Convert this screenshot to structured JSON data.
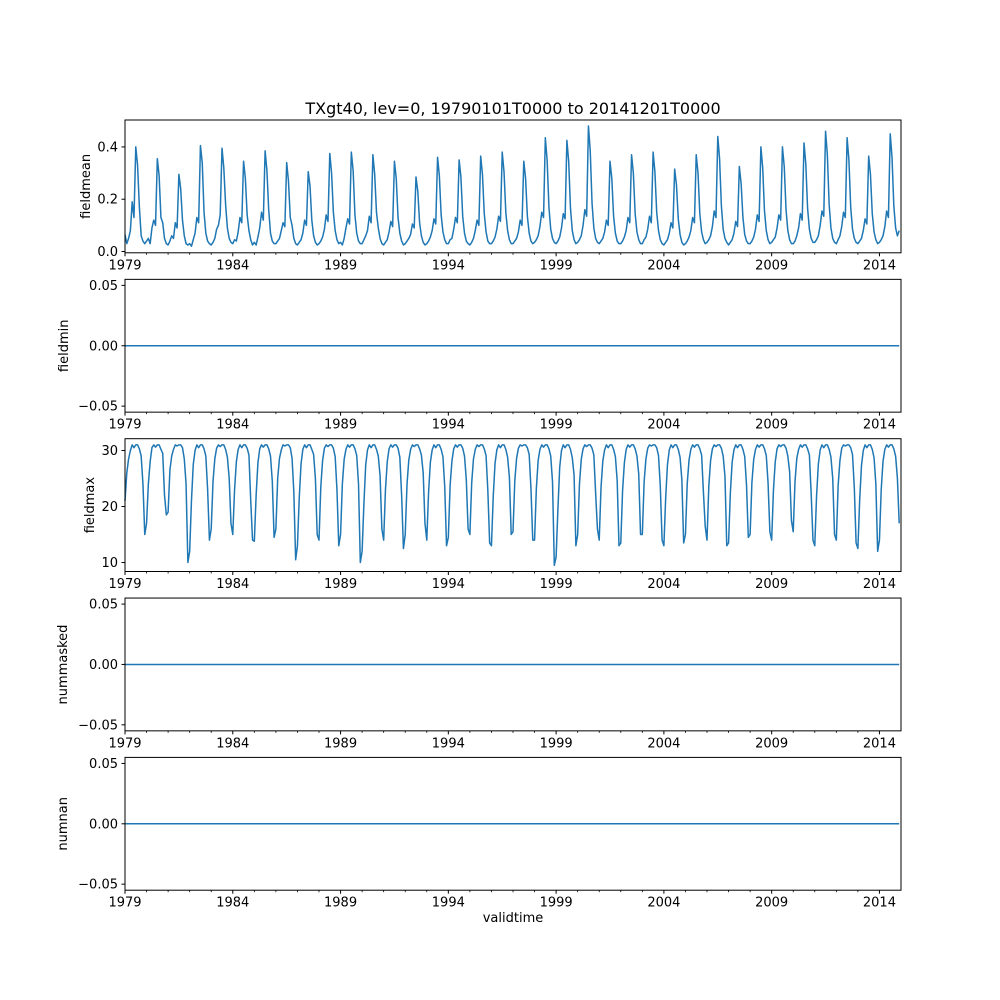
{
  "figure": {
    "title": "TXgt40, lev=0, 19790101T0000 to 20141201T0000",
    "xlabel": "validtime",
    "line_color": "#1f77b4",
    "background": "#ffffff",
    "xticks_major": [
      1979,
      1984,
      1989,
      1994,
      1999,
      2004,
      2009,
      2014
    ],
    "xtick_minor_step_years": 1,
    "xlim": [
      1979.0,
      2015.0
    ]
  },
  "chart_data": [
    {
      "type": "line",
      "name": "fieldmean",
      "ylabel": "fieldmean",
      "x_start_year": 1979,
      "points_per_month": 1,
      "ylim": [
        -0.005,
        0.503
      ],
      "yticks": [
        {
          "v": 0.0,
          "label": "0.0"
        },
        {
          "v": 0.2,
          "label": "0.2"
        },
        {
          "v": 0.4,
          "label": "0.4"
        }
      ],
      "values": [
        [
          0.065,
          0.03,
          0.05,
          0.08,
          0.19,
          0.13,
          0.4,
          0.33,
          0.17,
          0.06,
          0.04,
          0.03
        ],
        [
          0.04,
          0.05,
          0.03,
          0.09,
          0.12,
          0.1,
          0.355,
          0.29,
          0.13,
          0.11,
          0.05,
          0.03
        ],
        [
          0.025,
          0.04,
          0.06,
          0.05,
          0.11,
          0.09,
          0.295,
          0.24,
          0.12,
          0.06,
          0.03,
          0.025
        ],
        [
          0.03,
          0.02,
          0.045,
          0.07,
          0.13,
          0.11,
          0.405,
          0.34,
          0.15,
          0.07,
          0.04,
          0.03
        ],
        [
          0.025,
          0.035,
          0.05,
          0.085,
          0.1,
          0.14,
          0.395,
          0.32,
          0.18,
          0.09,
          0.05,
          0.035
        ],
        [
          0.03,
          0.045,
          0.04,
          0.075,
          0.13,
          0.11,
          0.345,
          0.28,
          0.14,
          0.08,
          0.045,
          0.025
        ],
        [
          0.035,
          0.025,
          0.055,
          0.09,
          0.15,
          0.12,
          0.385,
          0.31,
          0.16,
          0.07,
          0.04,
          0.03
        ],
        [
          0.03,
          0.04,
          0.05,
          0.08,
          0.11,
          0.095,
          0.34,
          0.27,
          0.13,
          0.1,
          0.05,
          0.03
        ],
        [
          0.025,
          0.035,
          0.045,
          0.07,
          0.12,
          0.1,
          0.305,
          0.25,
          0.12,
          0.06,
          0.035,
          0.025
        ],
        [
          0.03,
          0.04,
          0.055,
          0.085,
          0.14,
          0.115,
          0.375,
          0.3,
          0.15,
          0.08,
          0.045,
          0.03
        ],
        [
          0.035,
          0.025,
          0.05,
          0.09,
          0.125,
          0.105,
          0.38,
          0.31,
          0.14,
          0.07,
          0.04,
          0.03
        ],
        [
          0.03,
          0.045,
          0.06,
          0.08,
          0.135,
          0.11,
          0.37,
          0.295,
          0.15,
          0.09,
          0.05,
          0.03
        ],
        [
          0.025,
          0.035,
          0.045,
          0.075,
          0.115,
          0.095,
          0.345,
          0.28,
          0.13,
          0.07,
          0.04,
          0.025
        ],
        [
          0.03,
          0.04,
          0.05,
          0.065,
          0.105,
          0.09,
          0.285,
          0.23,
          0.11,
          0.06,
          0.035,
          0.025
        ],
        [
          0.03,
          0.04,
          0.055,
          0.08,
          0.125,
          0.105,
          0.36,
          0.29,
          0.14,
          0.075,
          0.045,
          0.03
        ],
        [
          0.03,
          0.045,
          0.05,
          0.085,
          0.13,
          0.11,
          0.35,
          0.285,
          0.135,
          0.07,
          0.04,
          0.03
        ],
        [
          0.025,
          0.035,
          0.05,
          0.08,
          0.12,
          0.1,
          0.365,
          0.295,
          0.145,
          0.075,
          0.04,
          0.03
        ],
        [
          0.03,
          0.04,
          0.055,
          0.085,
          0.135,
          0.115,
          0.38,
          0.305,
          0.15,
          0.08,
          0.045,
          0.03
        ],
        [
          0.03,
          0.04,
          0.05,
          0.075,
          0.12,
          0.1,
          0.345,
          0.28,
          0.135,
          0.07,
          0.04,
          0.03
        ],
        [
          0.035,
          0.045,
          0.06,
          0.095,
          0.15,
          0.13,
          0.435,
          0.35,
          0.17,
          0.085,
          0.05,
          0.035
        ],
        [
          0.03,
          0.04,
          0.055,
          0.09,
          0.145,
          0.125,
          0.425,
          0.345,
          0.165,
          0.08,
          0.045,
          0.03
        ],
        [
          0.035,
          0.045,
          0.06,
          0.1,
          0.16,
          0.135,
          0.48,
          0.385,
          0.185,
          0.09,
          0.05,
          0.035
        ],
        [
          0.03,
          0.04,
          0.05,
          0.075,
          0.12,
          0.1,
          0.345,
          0.28,
          0.135,
          0.07,
          0.04,
          0.03
        ],
        [
          0.03,
          0.04,
          0.055,
          0.08,
          0.13,
          0.11,
          0.37,
          0.3,
          0.145,
          0.075,
          0.045,
          0.03
        ],
        [
          0.03,
          0.045,
          0.055,
          0.085,
          0.135,
          0.11,
          0.38,
          0.305,
          0.15,
          0.08,
          0.045,
          0.03
        ],
        [
          0.025,
          0.035,
          0.045,
          0.07,
          0.11,
          0.09,
          0.315,
          0.255,
          0.125,
          0.065,
          0.035,
          0.025
        ],
        [
          0.03,
          0.04,
          0.055,
          0.08,
          0.13,
          0.11,
          0.37,
          0.3,
          0.145,
          0.075,
          0.045,
          0.03
        ],
        [
          0.035,
          0.045,
          0.06,
          0.095,
          0.155,
          0.13,
          0.44,
          0.355,
          0.175,
          0.085,
          0.05,
          0.035
        ],
        [
          0.025,
          0.035,
          0.045,
          0.07,
          0.115,
          0.095,
          0.325,
          0.26,
          0.13,
          0.065,
          0.04,
          0.03
        ],
        [
          0.03,
          0.04,
          0.055,
          0.085,
          0.14,
          0.115,
          0.4,
          0.32,
          0.155,
          0.08,
          0.045,
          0.03
        ],
        [
          0.035,
          0.045,
          0.055,
          0.09,
          0.14,
          0.12,
          0.4,
          0.325,
          0.16,
          0.08,
          0.045,
          0.03
        ],
        [
          0.03,
          0.04,
          0.06,
          0.09,
          0.145,
          0.12,
          0.415,
          0.335,
          0.165,
          0.085,
          0.05,
          0.035
        ],
        [
          0.035,
          0.045,
          0.06,
          0.1,
          0.155,
          0.135,
          0.46,
          0.37,
          0.18,
          0.09,
          0.05,
          0.035
        ],
        [
          0.03,
          0.045,
          0.06,
          0.095,
          0.15,
          0.13,
          0.435,
          0.35,
          0.17,
          0.085,
          0.05,
          0.035
        ],
        [
          0.03,
          0.04,
          0.05,
          0.08,
          0.125,
          0.105,
          0.365,
          0.295,
          0.145,
          0.075,
          0.045,
          0.03
        ],
        [
          0.035,
          0.045,
          0.06,
          0.095,
          0.155,
          0.13,
          0.45,
          0.36,
          0.175,
          0.09,
          0.06,
          0.08
        ]
      ]
    },
    {
      "type": "line",
      "name": "fieldmin",
      "ylabel": "fieldmin",
      "x_start_year": 1979,
      "constant": 0.0,
      "n_points": 432,
      "ylim": [
        -0.055,
        0.055
      ],
      "yticks": [
        {
          "v": -0.05,
          "label": "−0.05"
        },
        {
          "v": 0.0,
          "label": "0.00"
        },
        {
          "v": 0.05,
          "label": "0.05"
        }
      ]
    },
    {
      "type": "line",
      "name": "fieldmax",
      "ylabel": "fieldmax",
      "x_start_year": 1979,
      "ylim": [
        8.4,
        32.1
      ],
      "yticks": [
        {
          "v": 10,
          "label": "10"
        },
        {
          "v": 20,
          "label": "20"
        },
        {
          "v": 30,
          "label": "30"
        }
      ],
      "values": [
        [
          21.0,
          26.0,
          28.5,
          30.0,
          31.0,
          30.5,
          31.0,
          31.0,
          30.3,
          29.0,
          24.0,
          15.0
        ],
        [
          17.0,
          24.0,
          28.0,
          30.5,
          31.0,
          30.6,
          31.0,
          31.0,
          30.2,
          29.5,
          22.0,
          18.5
        ],
        [
          19.0,
          26.5,
          29.0,
          30.2,
          31.0,
          30.8,
          31.0,
          31.0,
          30.5,
          28.5,
          24.0,
          10.0
        ],
        [
          12.0,
          21.0,
          27.5,
          30.0,
          31.0,
          30.5,
          31.0,
          31.0,
          30.3,
          29.0,
          23.0,
          14.0
        ],
        [
          16.0,
          24.5,
          28.5,
          30.4,
          31.0,
          30.7,
          31.0,
          31.0,
          30.2,
          28.8,
          25.0,
          17.0
        ],
        [
          15.0,
          23.0,
          28.0,
          30.2,
          31.0,
          30.5,
          31.0,
          31.0,
          30.4,
          29.2,
          21.0,
          14.0
        ],
        [
          13.8,
          22.0,
          27.8,
          30.3,
          31.0,
          30.6,
          31.0,
          31.0,
          30.3,
          29.0,
          24.5,
          14.5
        ],
        [
          16.0,
          25.0,
          28.6,
          30.1,
          31.0,
          30.8,
          31.0,
          31.0,
          30.5,
          28.6,
          22.5,
          10.5
        ],
        [
          13.0,
          21.5,
          27.6,
          30.2,
          31.0,
          30.5,
          31.0,
          31.0,
          30.2,
          29.3,
          25.0,
          15.0
        ],
        [
          14.0,
          23.5,
          28.2,
          30.4,
          31.0,
          30.7,
          31.0,
          31.0,
          30.4,
          28.9,
          23.0,
          13.0
        ],
        [
          15.0,
          24.0,
          28.4,
          30.2,
          31.0,
          30.6,
          31.0,
          31.0,
          30.3,
          29.1,
          24.0,
          10.0
        ],
        [
          12.0,
          20.5,
          27.4,
          30.1,
          31.0,
          30.5,
          31.0,
          31.0,
          30.2,
          29.0,
          25.5,
          16.0
        ],
        [
          14.0,
          23.0,
          28.0,
          30.3,
          31.0,
          30.6,
          31.0,
          31.0,
          30.4,
          28.8,
          22.0,
          12.5
        ],
        [
          15.0,
          24.0,
          28.3,
          30.2,
          31.0,
          30.7,
          31.0,
          31.0,
          30.3,
          29.2,
          26.0,
          17.0
        ],
        [
          14.0,
          22.5,
          27.9,
          30.1,
          31.0,
          30.5,
          31.0,
          31.0,
          30.2,
          28.9,
          23.5,
          13.0
        ],
        [
          14.5,
          23.8,
          28.1,
          30.3,
          31.0,
          30.6,
          31.0,
          31.0,
          30.4,
          29.0,
          24.8,
          16.0
        ],
        [
          15.0,
          24.2,
          28.5,
          30.2,
          31.0,
          30.7,
          31.0,
          31.0,
          30.3,
          29.1,
          22.8,
          13.5
        ],
        [
          13.0,
          21.8,
          27.7,
          30.1,
          31.0,
          30.5,
          31.0,
          31.0,
          30.2,
          28.8,
          25.2,
          15.0
        ],
        [
          15.5,
          24.6,
          28.6,
          30.4,
          31.0,
          30.8,
          31.0,
          31.0,
          30.5,
          29.3,
          23.2,
          14.0
        ],
        [
          14.0,
          23.2,
          28.2,
          30.2,
          31.0,
          30.6,
          31.0,
          31.0,
          30.3,
          29.0,
          24.4,
          9.5
        ],
        [
          11.0,
          19.5,
          27.0,
          30.0,
          31.0,
          30.5,
          31.0,
          31.0,
          30.2,
          28.7,
          25.6,
          13.0
        ],
        [
          15.0,
          24.0,
          28.4,
          30.3,
          31.0,
          30.7,
          31.0,
          31.0,
          30.4,
          29.2,
          22.4,
          16.0
        ],
        [
          14.0,
          23.4,
          28.1,
          30.1,
          31.0,
          30.5,
          31.0,
          31.0,
          30.2,
          28.9,
          24.6,
          13.0
        ],
        [
          13.5,
          22.8,
          27.8,
          30.2,
          31.0,
          30.6,
          31.0,
          31.0,
          30.3,
          29.0,
          25.8,
          15.0
        ],
        [
          15.0,
          24.4,
          28.5,
          30.4,
          31.0,
          30.8,
          31.0,
          31.0,
          30.5,
          29.1,
          23.6,
          14.0
        ],
        [
          13.0,
          21.6,
          27.5,
          30.1,
          31.0,
          30.5,
          31.0,
          31.0,
          30.2,
          28.8,
          24.8,
          13.5
        ],
        [
          15.0,
          24.1,
          28.3,
          30.2,
          31.0,
          30.6,
          31.0,
          31.0,
          30.3,
          29.2,
          22.6,
          16.5
        ],
        [
          14.0,
          23.6,
          28.2,
          30.3,
          31.0,
          30.7,
          31.0,
          31.0,
          30.4,
          29.0,
          25.4,
          13.0
        ],
        [
          13.5,
          22.4,
          27.9,
          30.1,
          31.0,
          30.5,
          31.0,
          31.0,
          30.2,
          28.9,
          23.8,
          14.5
        ],
        [
          15.0,
          24.3,
          28.4,
          30.2,
          31.0,
          30.6,
          31.0,
          31.0,
          30.3,
          29.1,
          24.2,
          15.5
        ],
        [
          14.0,
          23.0,
          28.0,
          30.3,
          31.0,
          30.7,
          31.0,
          31.0,
          30.4,
          29.0,
          26.2,
          17.5
        ],
        [
          15.5,
          24.5,
          28.6,
          30.2,
          31.0,
          30.6,
          31.0,
          31.0,
          30.3,
          29.2,
          22.2,
          14.0
        ],
        [
          13.0,
          21.9,
          27.6,
          30.1,
          31.0,
          30.5,
          31.0,
          31.0,
          30.2,
          28.8,
          25.0,
          15.0
        ],
        [
          14.0,
          23.7,
          28.2,
          30.4,
          31.0,
          30.8,
          31.0,
          31.0,
          30.5,
          29.3,
          23.4,
          13.5
        ],
        [
          12.5,
          21.2,
          27.3,
          30.0,
          31.0,
          30.5,
          31.0,
          31.0,
          30.2,
          28.7,
          24.0,
          12.0
        ],
        [
          14.0,
          23.1,
          28.1,
          30.2,
          31.0,
          30.6,
          31.0,
          31.0,
          30.3,
          29.0,
          25.0,
          17.0
        ]
      ]
    },
    {
      "type": "line",
      "name": "nummasked",
      "ylabel": "nummasked",
      "x_start_year": 1979,
      "constant": 0.0,
      "n_points": 432,
      "ylim": [
        -0.055,
        0.055
      ],
      "yticks": [
        {
          "v": -0.05,
          "label": "−0.05"
        },
        {
          "v": 0.0,
          "label": "0.00"
        },
        {
          "v": 0.05,
          "label": "0.05"
        }
      ]
    },
    {
      "type": "line",
      "name": "numnan",
      "ylabel": "numnan",
      "x_start_year": 1979,
      "constant": 0.0,
      "n_points": 432,
      "ylim": [
        -0.055,
        0.055
      ],
      "yticks": [
        {
          "v": -0.05,
          "label": "−0.05"
        },
        {
          "v": 0.0,
          "label": "0.00"
        },
        {
          "v": 0.05,
          "label": "0.05"
        }
      ]
    }
  ]
}
